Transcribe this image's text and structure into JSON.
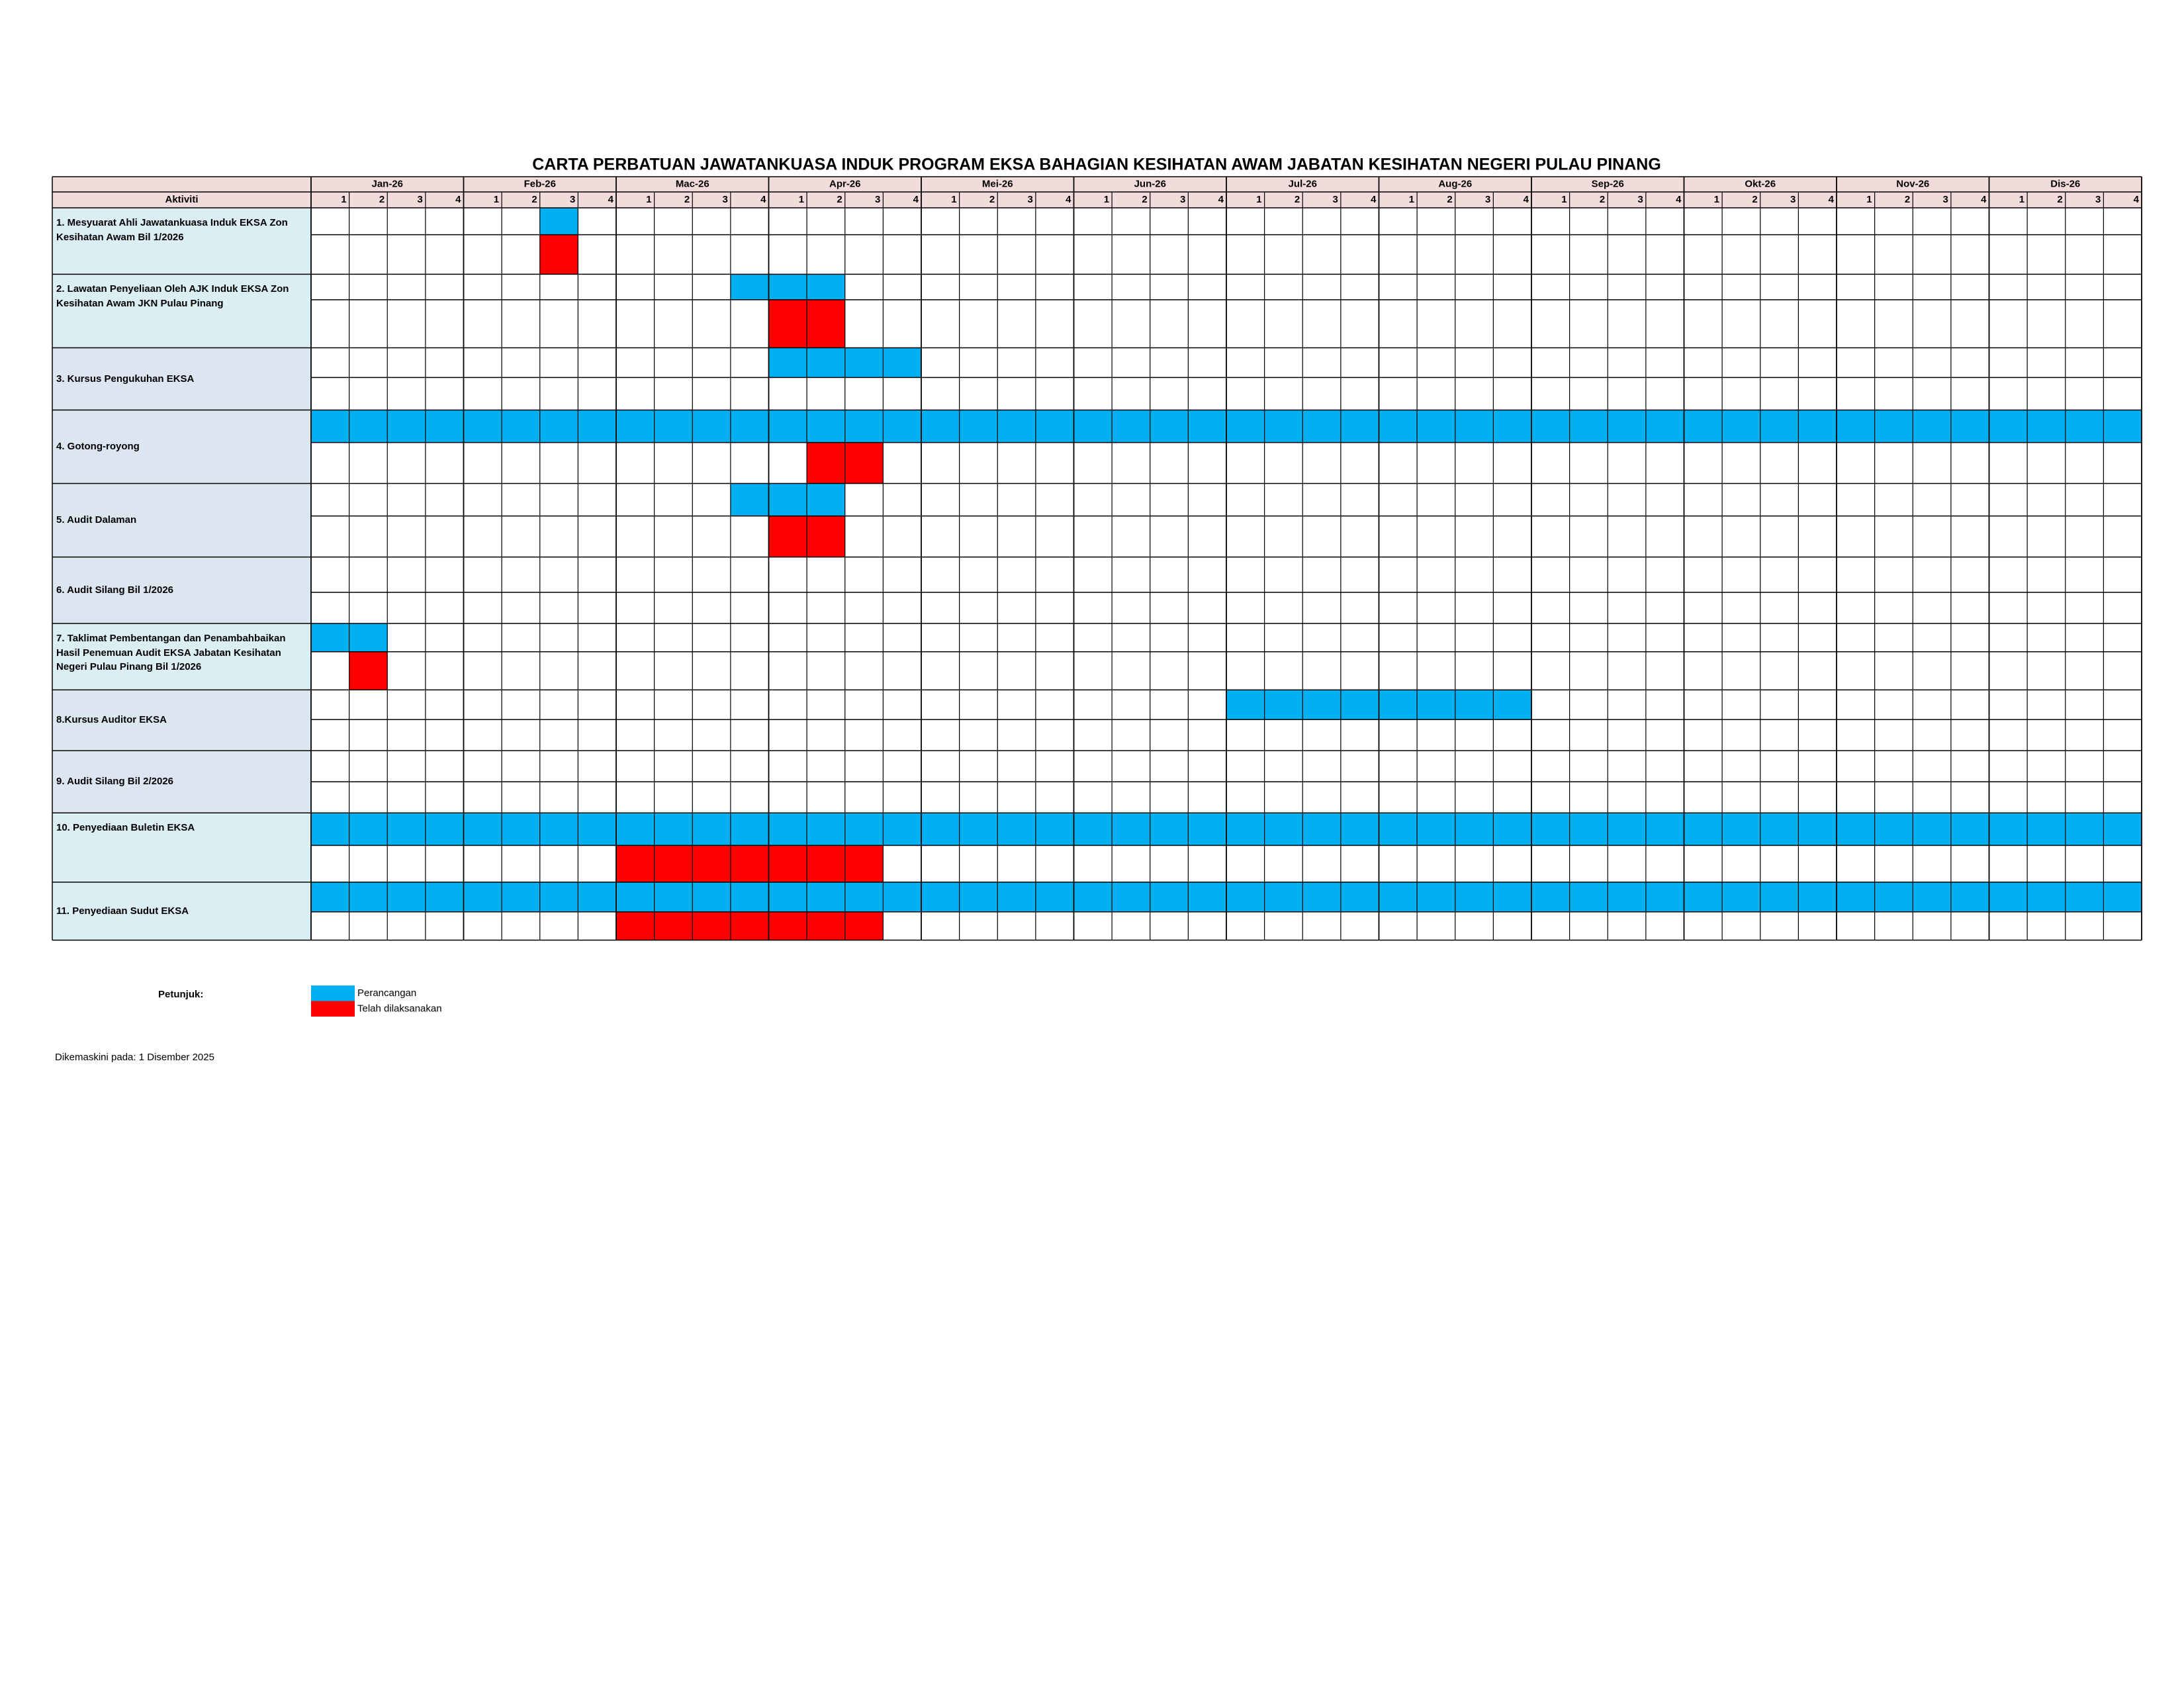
{
  "title": "CARTA PERBATUAN JAWATANKUASA INDUK PROGRAM EKSA BAHAGIAN KESIHATAN AWAM JABATAN KESIHATAN NEGERI PULAU PINANG",
  "header": "Aktiviti",
  "months": [
    "Jan-26",
    "Feb-26",
    "Mac-26",
    "Apr-26",
    "Mei-26",
    "Jun-26",
    "Jul-26",
    "Aug-26",
    "Sep-26",
    "Okt-26",
    "Nov-26",
    "Dis-26"
  ],
  "weeks": [
    "1",
    "2",
    "3",
    "4"
  ],
  "activities": [
    {
      "label": "1. Mesyuarat Ahli Jawatankuasa Induk EKSA Zon Kesihatan Awam Bil 1/2026",
      "plan": [
        [
          6,
          6
        ]
      ],
      "done": [
        [
          6,
          6
        ]
      ]
    },
    {
      "label": "2. Lawatan Penyeliaan Oleh AJK Induk EKSA Zon Kesihatan Awam JKN Pulau Pinang",
      "plan": [
        [
          11,
          13
        ]
      ],
      "done": [
        [
          12,
          13
        ]
      ]
    },
    {
      "label": "3. Kursus Pengukuhan EKSA",
      "plan": [
        [
          12,
          15
        ]
      ],
      "done": []
    },
    {
      "label": "4. Gotong-royong",
      "plan": [
        [
          0,
          47
        ]
      ],
      "done": [
        [
          13,
          14
        ]
      ]
    },
    {
      "label": "5. Audit Dalaman",
      "plan": [
        [
          11,
          13
        ]
      ],
      "done": [
        [
          12,
          13
        ]
      ]
    },
    {
      "label": "6. Audit Silang Bil 1/2026",
      "plan": [],
      "done": []
    },
    {
      "label": "7. Taklimat Pembentangan dan Penambahbaikan Hasil Penemuan Audit EKSA Jabatan Kesihatan Negeri Pulau Pinang Bil 1/2026",
      "plan": [
        [
          0,
          1
        ]
      ],
      "done": [
        [
          1,
          1
        ]
      ]
    },
    {
      "label": "8.Kursus Auditor EKSA",
      "plan": [
        [
          24,
          31
        ]
      ],
      "done": []
    },
    {
      "label": "9. Audit Silang Bil 2/2026",
      "plan": [],
      "done": []
    },
    {
      "label": "10. Penyediaan Buletin EKSA",
      "plan": [
        [
          0,
          47
        ]
      ],
      "done": [
        [
          8,
          14
        ]
      ]
    },
    {
      "label": "11. Penyediaan Sudut EKSA",
      "plan": [
        [
          0,
          47
        ]
      ],
      "done": [
        [
          8,
          14
        ]
      ]
    }
  ],
  "legend": {
    "title": "Petunjuk:",
    "items": [
      {
        "label": "Perancangan",
        "color": "#00b0f0"
      },
      {
        "label": "Telah dilaksanakan",
        "color": "#ff0000"
      }
    ]
  },
  "footer": "Dikemaskini pada: 1 Disember 2025"
}
